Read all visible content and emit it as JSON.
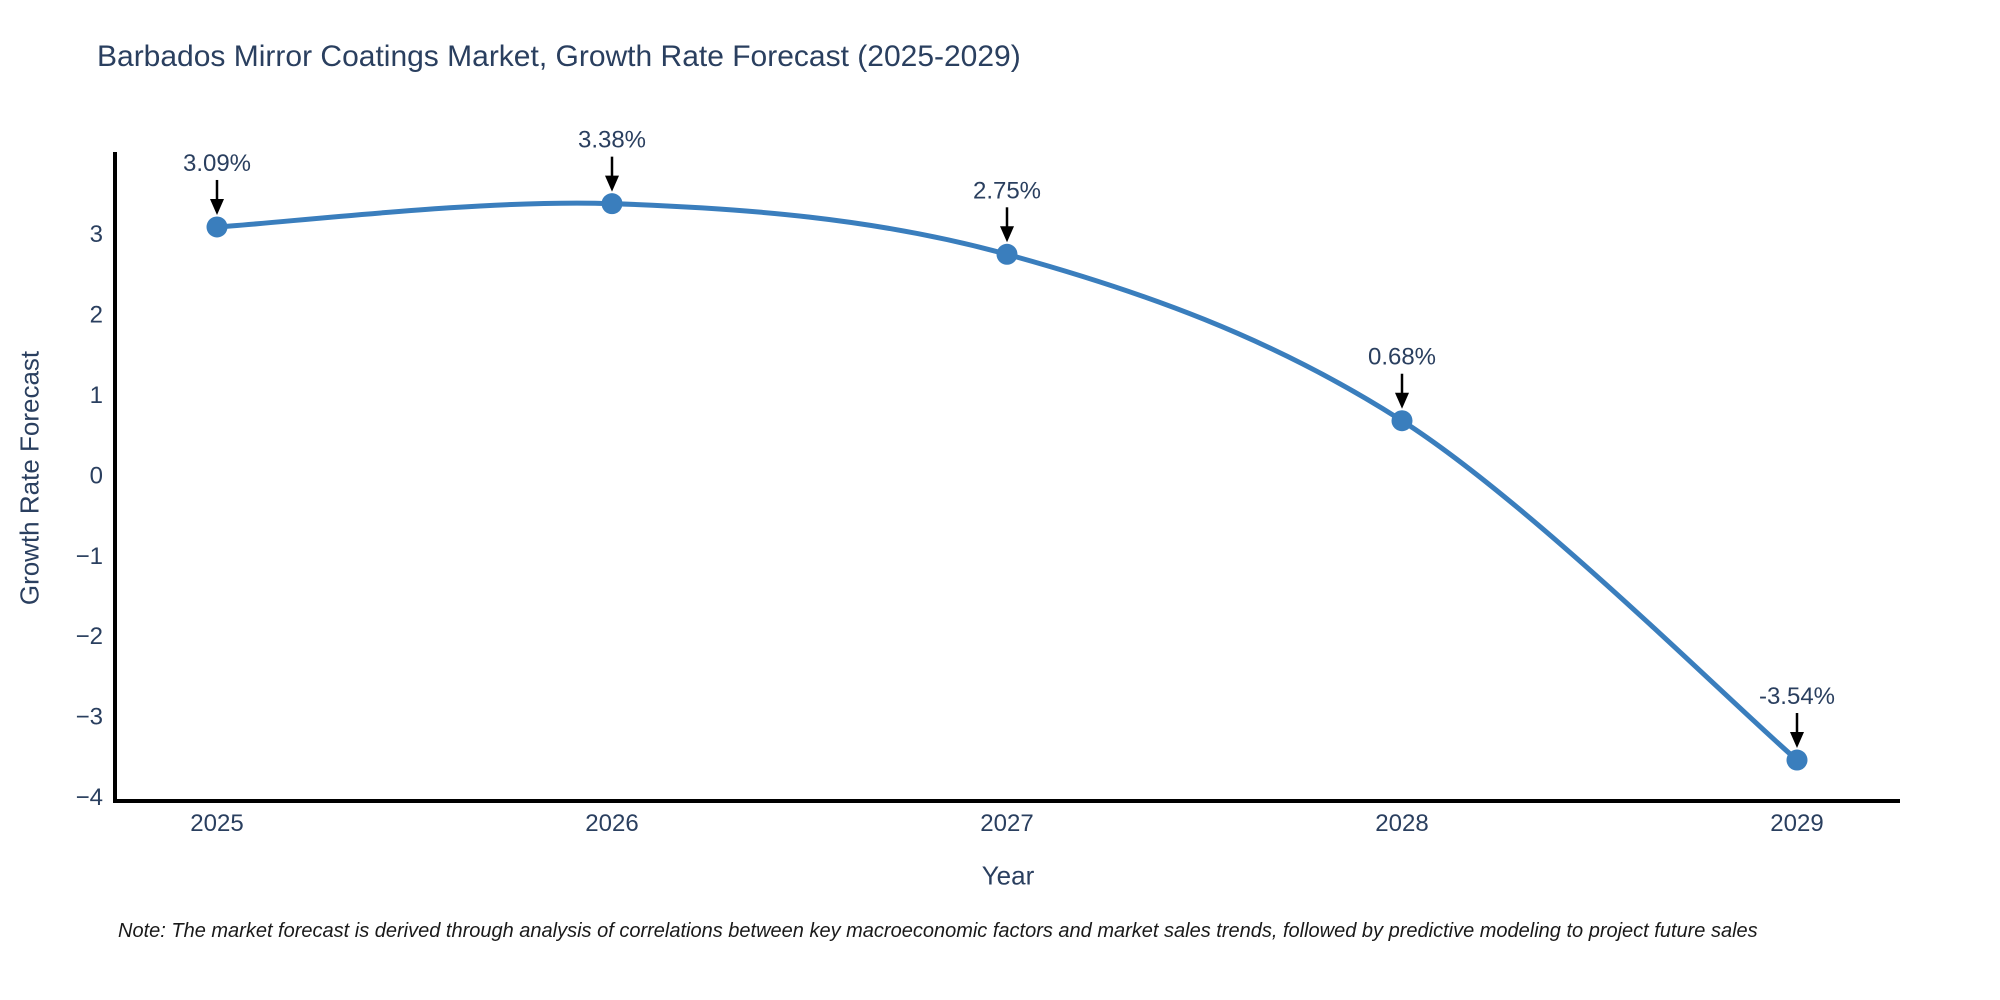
{
  "title": "Barbados Mirror Coatings Market, Growth Rate Forecast (2025-2029)",
  "note": "Note: The market forecast is derived through analysis of correlations between key macroeconomic factors and market sales trends, followed by predictive modeling to project future sales",
  "chart_data": {
    "type": "line",
    "title": "Barbados Mirror Coatings Market, Growth Rate Forecast (2025-2029)",
    "x": [
      2025,
      2026,
      2027,
      2028,
      2029
    ],
    "y": [
      3.09,
      3.38,
      2.75,
      0.68,
      -3.54
    ],
    "point_labels": [
      "3.09%",
      "3.38%",
      "2.75%",
      "0.68%",
      "-3.54%"
    ],
    "series_name": "Growth Rate Forecast",
    "xlabel": "Year",
    "ylabel": "Growth Rate Forecast",
    "ylim": [
      -4.1,
      4.0
    ],
    "yticks": [
      3,
      2,
      1,
      0,
      -1,
      -2,
      -3,
      -4
    ],
    "line_shape": "spline",
    "grid": false,
    "legend": "none",
    "line_color": "#3a7ebd",
    "marker_color": "#3a7ebd",
    "arrow_color": "#000000",
    "axis_line_color": "#000000",
    "text_color": "#2a3f5f"
  }
}
